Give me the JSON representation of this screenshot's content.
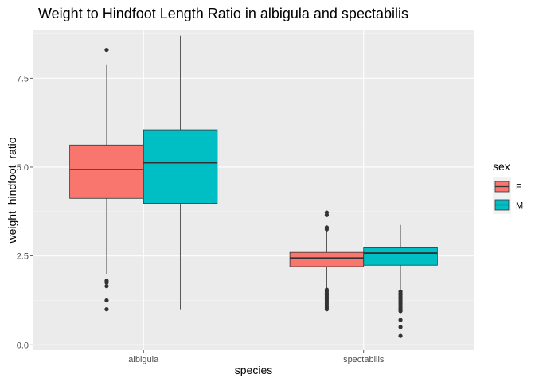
{
  "chart_data": {
    "type": "boxplot",
    "title": "Weight to Hindfoot Length Ratio in albigula and spectabilis",
    "xlabel": "species",
    "ylabel": "weight_hindfoot_ratio",
    "categories": [
      "albigula",
      "spectabilis"
    ],
    "ylim": [
      -0.15,
      8.85
    ],
    "yticks": [
      0.0,
      2.5,
      5.0,
      7.5
    ],
    "ytick_labels": [
      "0.0",
      "2.5",
      "5.0",
      "7.5"
    ],
    "grid": true,
    "background": "#ebebeb",
    "legend": {
      "title": "sex",
      "position": "right",
      "entries": [
        {
          "label": "F",
          "color": "#f8766d"
        },
        {
          "label": "M",
          "color": "#00bfc4"
        }
      ]
    },
    "series": [
      {
        "name": "F",
        "color": "#f8766d",
        "boxes": [
          {
            "category": "albigula",
            "whisker_low": 2.0,
            "q1": 4.12,
            "median": 4.93,
            "q3": 5.62,
            "whisker_high": 7.87,
            "outliers": [
              8.3,
              1.8,
              1.75,
              1.65,
              1.25,
              1.0
            ]
          },
          {
            "category": "spectabilis",
            "whisker_low": 1.58,
            "q1": 2.2,
            "median": 2.44,
            "q3": 2.6,
            "whisker_high": 3.2,
            "outliers": [
              3.72,
              3.65,
              3.3,
              3.25,
              1.55,
              1.5,
              1.45,
              1.4,
              1.35,
              1.3,
              1.25,
              1.2,
              1.15,
              1.1,
              1.05,
              1.0
            ]
          }
        ]
      },
      {
        "name": "M",
        "color": "#00bfc4",
        "boxes": [
          {
            "category": "albigula",
            "whisker_low": 1.0,
            "q1": 3.98,
            "median": 5.12,
            "q3": 6.05,
            "whisker_high": 8.7,
            "outliers": []
          },
          {
            "category": "spectabilis",
            "whisker_low": 1.55,
            "q1": 2.24,
            "median": 2.58,
            "q3": 2.75,
            "whisker_high": 3.37,
            "outliers": [
              1.5,
              1.45,
              1.4,
              1.35,
              1.3,
              1.25,
              1.2,
              1.15,
              1.1,
              1.05,
              1.0,
              0.95,
              0.7,
              0.5,
              0.25
            ]
          }
        ]
      }
    ]
  }
}
